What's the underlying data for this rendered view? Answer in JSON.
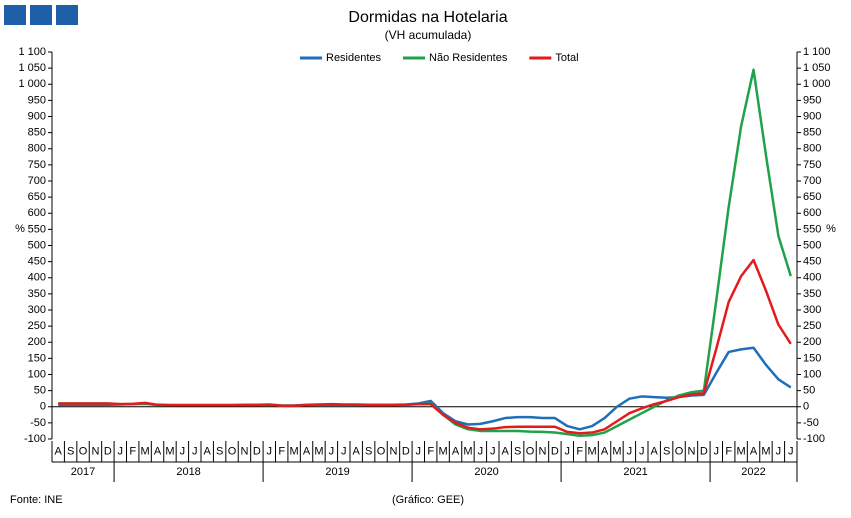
{
  "chart_data": {
    "type": "line",
    "title": "Dormidas na Hotelaria",
    "subtitle": "(VH acumulada)",
    "ylabel": "%",
    "source": "Fonte: INE",
    "credit": "(Gráfico: GEE)",
    "categories": [
      "A",
      "S",
      "O",
      "N",
      "D",
      "J",
      "F",
      "M",
      "A",
      "M",
      "J",
      "J",
      "A",
      "S",
      "O",
      "N",
      "D",
      "J",
      "F",
      "M",
      "A",
      "M",
      "J",
      "J",
      "A",
      "S",
      "O",
      "N",
      "D",
      "J",
      "F",
      "M",
      "A",
      "M",
      "J",
      "J",
      "A",
      "S",
      "O",
      "N",
      "D",
      "J",
      "F",
      "M",
      "A",
      "M",
      "J",
      "J",
      "A",
      "S",
      "O",
      "N",
      "D",
      "J",
      "F",
      "M",
      "A",
      "M",
      "J",
      "J"
    ],
    "years": [
      "2017",
      "2018",
      "2019",
      "2020",
      "2021",
      "2022"
    ],
    "ylim": [
      -100,
      1100
    ],
    "yticks": [
      -100,
      -50,
      0,
      50,
      100,
      150,
      200,
      250,
      300,
      350,
      400,
      450,
      500,
      550,
      600,
      650,
      700,
      750,
      800,
      850,
      900,
      950,
      {
        "value": 1000,
        "label": "1 000"
      },
      {
        "value": 1050,
        "label": "1 050"
      },
      {
        "value": 1100,
        "label": "1 100"
      }
    ],
    "grid": false,
    "legend": "top",
    "series": [
      {
        "name": "Residentes",
        "color": "#1f6fb8",
        "values": [
          5,
          6,
          6,
          6,
          6,
          7,
          8,
          9,
          6,
          5,
          5,
          5,
          5,
          5,
          5,
          6,
          6,
          7,
          4,
          4,
          6,
          7,
          8,
          7,
          7,
          6,
          6,
          6,
          7,
          10,
          18,
          -20,
          -45,
          -55,
          -53,
          -45,
          -35,
          -32,
          -32,
          -35,
          -35,
          -60,
          -70,
          -60,
          -35,
          0,
          25,
          32,
          30,
          28,
          30,
          35,
          37,
          105,
          170,
          178,
          183,
          130,
          85,
          60
        ]
      },
      {
        "name": "Não Residentes",
        "color": "#1fa24a",
        "values": [
          10,
          10,
          10,
          10,
          10,
          8,
          8,
          10,
          5,
          5,
          5,
          5,
          5,
          5,
          5,
          5,
          5,
          6,
          3,
          3,
          5,
          6,
          6,
          6,
          6,
          5,
          5,
          5,
          6,
          8,
          10,
          -25,
          -55,
          -70,
          -75,
          -75,
          -75,
          -75,
          -77,
          -78,
          -80,
          -85,
          -90,
          -88,
          -80,
          -60,
          -40,
          -20,
          0,
          20,
          35,
          45,
          50,
          330,
          620,
          870,
          1045,
          780,
          530,
          405
        ]
      },
      {
        "name": "Total",
        "color": "#e41a1c",
        "values": [
          10,
          10,
          10,
          10,
          10,
          8,
          9,
          12,
          6,
          5,
          5,
          5,
          5,
          5,
          5,
          5,
          5,
          6,
          3,
          3,
          5,
          6,
          7,
          6,
          6,
          5,
          5,
          5,
          6,
          8,
          8,
          -25,
          -50,
          -65,
          -70,
          -68,
          -63,
          -62,
          -62,
          -62,
          -62,
          -78,
          -82,
          -80,
          -70,
          -45,
          -20,
          -5,
          8,
          18,
          30,
          38,
          42,
          180,
          325,
          405,
          455,
          360,
          255,
          195
        ]
      }
    ]
  }
}
